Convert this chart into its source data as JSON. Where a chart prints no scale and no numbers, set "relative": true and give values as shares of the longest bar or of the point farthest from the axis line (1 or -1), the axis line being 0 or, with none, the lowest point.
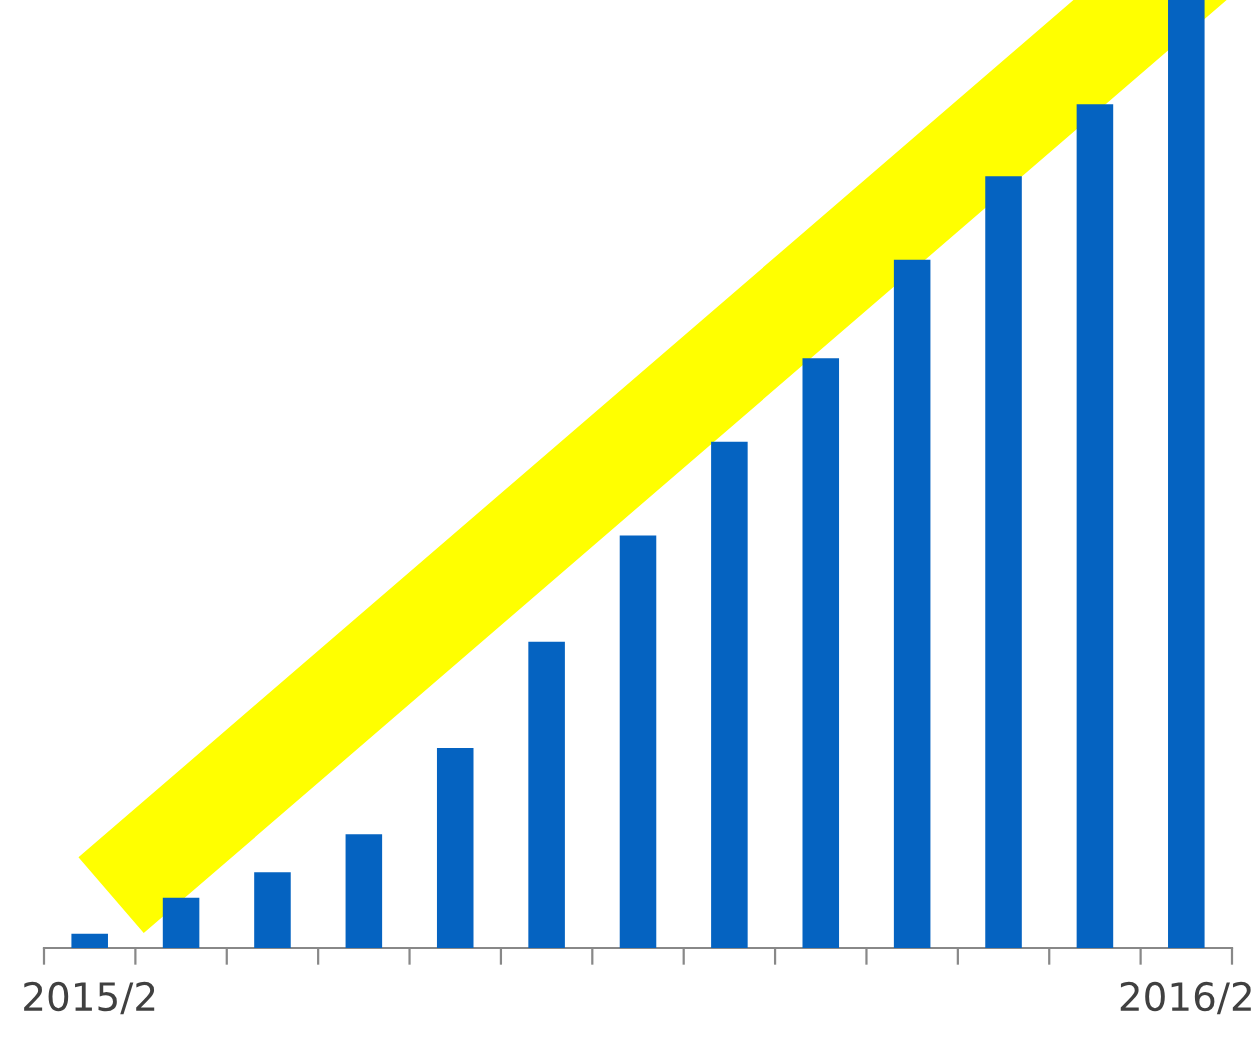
{
  "chart_data": {
    "type": "bar",
    "relative": true,
    "categories": [
      "2015/2",
      null,
      null,
      null,
      null,
      null,
      null,
      null,
      null,
      null,
      null,
      null,
      "2016/2"
    ],
    "values": [
      0.015,
      0.053,
      0.08,
      0.12,
      0.211,
      0.323,
      0.435,
      0.534,
      0.622,
      0.726,
      0.814,
      0.89,
      1
    ],
    "color": "#0563c1",
    "grid": false,
    "legend": false
  }
}
